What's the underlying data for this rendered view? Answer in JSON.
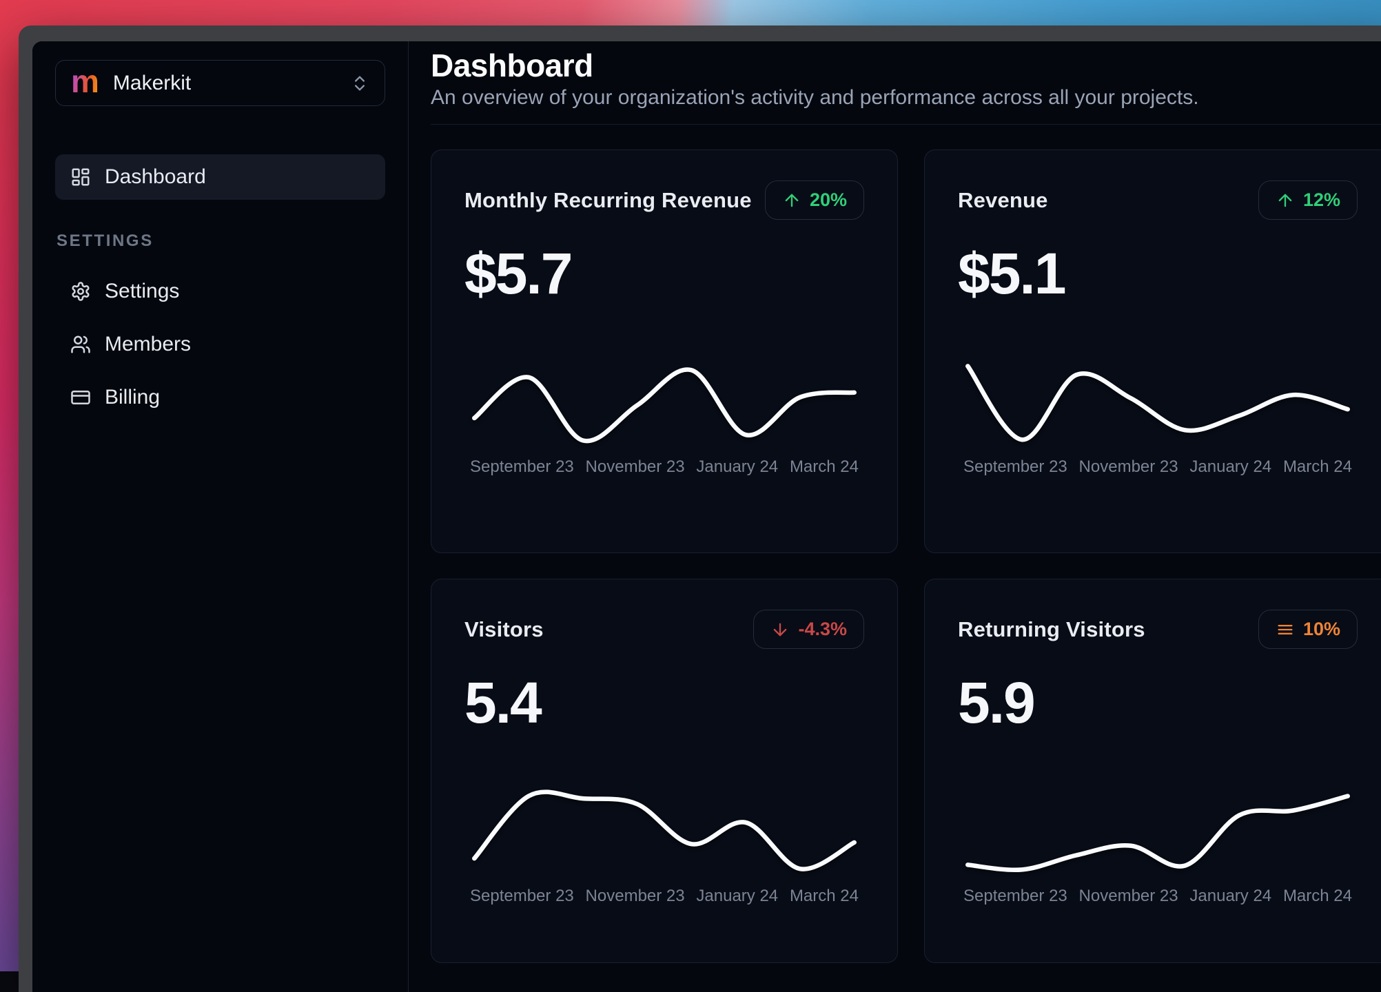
{
  "window": {
    "type": "macos-dark-window",
    "frame_color": "#3e3f42",
    "app_background": "#04070e"
  },
  "sidebar": {
    "workspace": {
      "logo_letter": "m",
      "logo_gradient": [
        "#b14be0",
        "#f59e0b"
      ],
      "name": "Makerkit",
      "selector_icon": "chevrons-up-down-icon"
    },
    "primary_nav": [
      {
        "label": "Dashboard",
        "icon": "layout-dashboard-icon",
        "active": true
      }
    ],
    "section_label": "SETTINGS",
    "settings_nav": [
      {
        "label": "Settings",
        "icon": "gear-icon"
      },
      {
        "label": "Members",
        "icon": "users-icon"
      },
      {
        "label": "Billing",
        "icon": "credit-card-icon"
      }
    ]
  },
  "header": {
    "title": "Dashboard",
    "subtitle": "An overview of your organization's activity and performance across all your projects."
  },
  "cards": [
    {
      "title": "Monthly Recurring Revenue",
      "value": "$5.7",
      "badge": {
        "icon": "trend-up-arrow-icon",
        "label": "20%",
        "color": "#30cf79"
      }
    },
    {
      "title": "Revenue",
      "value": "$5.1",
      "badge": {
        "icon": "trend-up-arrow-icon",
        "label": "12%",
        "color": "#30cf79"
      }
    },
    {
      "title": "Visitors",
      "value": "5.4",
      "badge": {
        "icon": "trend-down-arrow-icon",
        "label": "-4.3%",
        "color": "#c94848"
      }
    },
    {
      "title": "Returning Visitors",
      "value": "5.9",
      "badge": {
        "icon": "trend-flat-icon",
        "label": "10%",
        "color": "#ef8436"
      }
    }
  ],
  "chart_data": [
    {
      "type": "line",
      "title": "Monthly Recurring Revenue",
      "current_value": "$5.7",
      "trend": "+20%",
      "x_tick_labels": [
        "September 23",
        "November 23",
        "January 24",
        "March 24"
      ],
      "y_axis": "hidden-sparkline",
      "line_color": "#fafbfc",
      "series": [
        {
          "name": "Monthly Recurring Revenue",
          "values_pct_of_chart_height": [
            32,
            83,
            4,
            48,
            92,
            11,
            58,
            64
          ]
        }
      ]
    },
    {
      "type": "line",
      "title": "Revenue",
      "current_value": "$5.1",
      "trend": "+12%",
      "x_tick_labels": [
        "September 23",
        "November 23",
        "January 24",
        "March 24"
      ],
      "y_axis": "hidden-sparkline",
      "line_color": "#fafbfc",
      "series": [
        {
          "name": "Revenue",
          "values_pct_of_chart_height": [
            97,
            5,
            86,
            57,
            17,
            35,
            61,
            43
          ]
        }
      ]
    },
    {
      "type": "line",
      "title": "Visitors",
      "current_value": "5.4",
      "trend": "-4.3%",
      "x_tick_labels": [
        "September 23",
        "November 23",
        "January 24",
        "March 24"
      ],
      "y_axis": "hidden-sparkline",
      "line_color": "#fafbfc",
      "series": [
        {
          "name": "Visitors",
          "values_pct_of_chart_height": [
            18,
            96,
            93,
            86,
            36,
            63,
            5,
            38
          ]
        }
      ]
    },
    {
      "type": "line",
      "title": "Returning Visitors",
      "current_value": "5.9",
      "trend": "+10%",
      "x_tick_labels": [
        "September 23",
        "November 23",
        "January 24",
        "March 24"
      ],
      "y_axis": "hidden-sparkline",
      "line_color": "#fafbfc",
      "series": [
        {
          "name": "Returning Visitors",
          "values_pct_of_chart_height": [
            10,
            4,
            22,
            34,
            9,
            72,
            78,
            96
          ]
        }
      ]
    }
  ]
}
